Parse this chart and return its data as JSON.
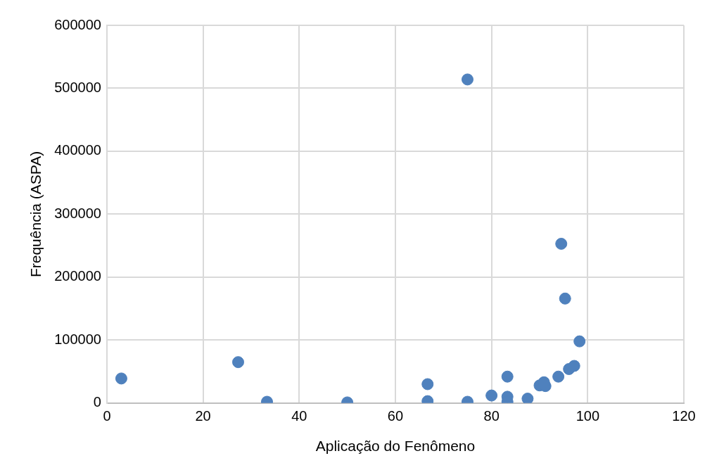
{
  "chart_data": {
    "type": "scatter",
    "xlabel": "Aplicação do Fenômeno",
    "ylabel": "Frequência (ASPA)",
    "x": [
      3,
      27.3,
      33.3,
      50,
      66.7,
      66.7,
      75,
      75,
      80,
      83.3,
      83.3,
      83.3,
      87.5,
      90,
      91.2,
      93.9,
      94.5,
      95.3,
      96.1,
      97.2,
      98.3,
      90.9
    ],
    "series": [
      {
        "color": "#4f81bd",
        "values": [
          39000,
          65000,
          2000,
          1000,
          30000,
          3000,
          514000,
          2000,
          12000,
          42000,
          10000,
          2000,
          7000,
          28000,
          27000,
          42000,
          253000,
          166000,
          54000,
          59000,
          98000,
          33000
        ]
      }
    ],
    "xlim": [
      0,
      120
    ],
    "xticks": [
      0,
      20,
      40,
      60,
      80,
      100,
      120
    ],
    "ylim": [
      0,
      600000
    ],
    "yticks": [
      0,
      100000,
      200000,
      300000,
      400000,
      500000,
      600000
    ],
    "grid": true,
    "marker": "circle",
    "legend": false
  }
}
